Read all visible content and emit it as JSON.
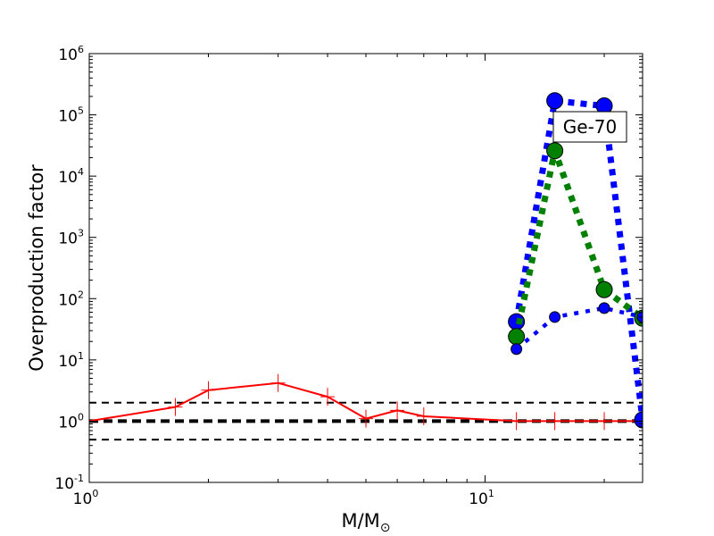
{
  "chart_data": {
    "type": "line",
    "xlabel": "M/M",
    "xlabel_subscript": "⊙",
    "ylabel": "Overproduction factor",
    "xscale": "log",
    "yscale": "log",
    "xlim": [
      1,
      25
    ],
    "ylim": [
      0.1,
      1000000
    ],
    "x_ticks": [
      {
        "value": 1,
        "base": "10",
        "exp": "0"
      },
      {
        "value": 10,
        "base": "10",
        "exp": "1"
      }
    ],
    "y_ticks": [
      {
        "value": 0.1,
        "base": "10",
        "exp": "-1"
      },
      {
        "value": 1,
        "base": "10",
        "exp": "0"
      },
      {
        "value": 10,
        "base": "10",
        "exp": "1"
      },
      {
        "value": 100,
        "base": "10",
        "exp": "2"
      },
      {
        "value": 1000,
        "base": "10",
        "exp": "3"
      },
      {
        "value": 10000,
        "base": "10",
        "exp": "4"
      },
      {
        "value": 100000,
        "base": "10",
        "exp": "5"
      },
      {
        "value": 1000000,
        "base": "10",
        "exp": "6"
      }
    ],
    "annotation": "Ge-70",
    "hlines": [
      {
        "y": 2,
        "color": "#000000",
        "style": "dashed"
      },
      {
        "y": 1,
        "color": "#000000",
        "style": "dashed-thick"
      },
      {
        "y": 0.5,
        "color": "#000000",
        "style": "dashed"
      }
    ],
    "series": [
      {
        "color": "#ff0000",
        "style": "solid",
        "marker": "plus",
        "x": [
          1,
          1.65,
          2,
          3,
          4,
          5,
          6,
          7,
          12,
          15,
          20,
          25
        ],
        "y": [
          1.0,
          1.7,
          3.2,
          4.2,
          2.5,
          1.1,
          1.5,
          1.2,
          1.0,
          1.0,
          1.0,
          1.0
        ]
      },
      {
        "color": "#0000ff",
        "style": "dotted-thick",
        "marker": "circle-large",
        "x": [
          12,
          15,
          20,
          25
        ],
        "y": [
          42,
          170000,
          140000,
          1.05
        ]
      },
      {
        "color": "#008000",
        "style": "dotted-thick",
        "marker": "circle-large",
        "x": [
          12,
          15,
          20,
          25
        ],
        "y": [
          24,
          26000,
          140,
          48
        ]
      },
      {
        "color": "#0000ff",
        "style": "dotted-medium",
        "marker": "circle-small",
        "x": [
          12,
          15,
          20,
          25
        ],
        "y": [
          15,
          50,
          70,
          50
        ]
      }
    ]
  }
}
